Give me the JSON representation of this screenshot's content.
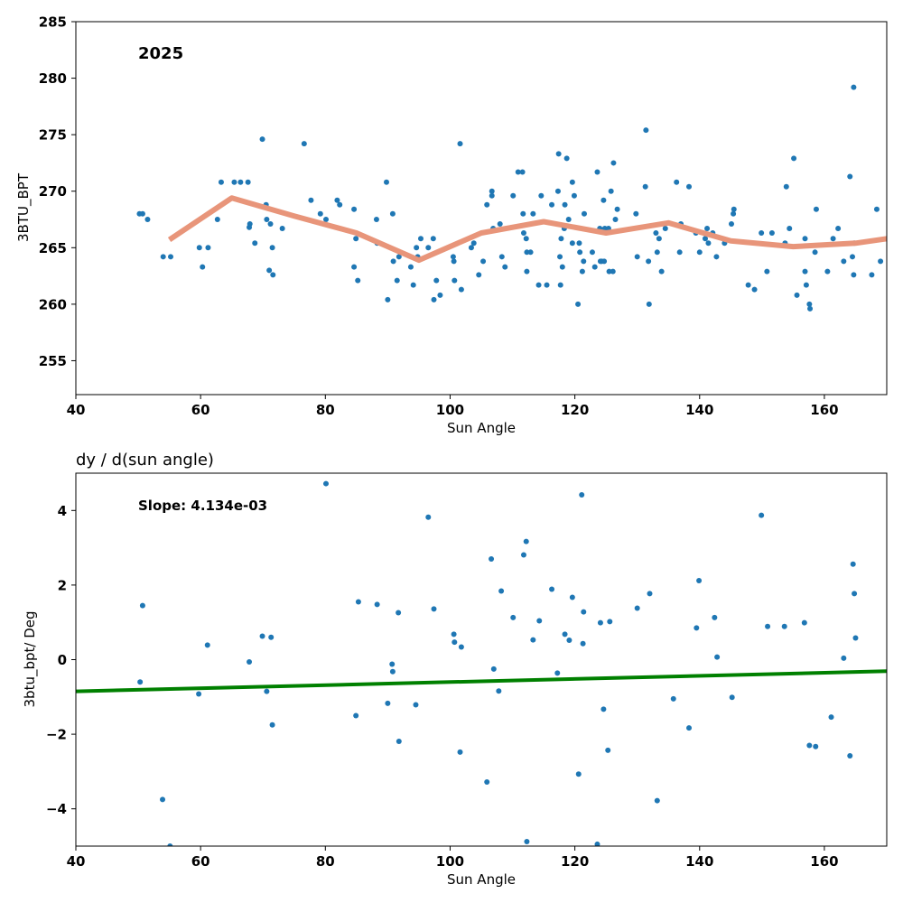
{
  "chart_data": [
    {
      "type": "scatter",
      "title": "",
      "annotation": "2025",
      "xlabel": "Sun Angle",
      "ylabel": "3BTU_BPT",
      "xlim": [
        40,
        170
      ],
      "ylim": [
        252,
        285
      ],
      "xticks": [
        40,
        60,
        80,
        100,
        120,
        140,
        160
      ],
      "yticks": [
        255,
        260,
        265,
        270,
        275,
        280,
        285
      ],
      "grid": false,
      "colors": {
        "points": "#1f77b4",
        "trend": "#e8957a"
      },
      "series": [
        {
          "type": "scatter",
          "points": [
            [
              50.2,
              268.0
            ],
            [
              50.7,
              268.0
            ],
            [
              51.5,
              267.5
            ],
            [
              54.0,
              264.2
            ],
            [
              55.2,
              264.2
            ],
            [
              59.8,
              265.0
            ],
            [
              60.3,
              263.3
            ],
            [
              61.2,
              265.0
            ],
            [
              62.7,
              267.5
            ],
            [
              63.3,
              270.8
            ],
            [
              65.4,
              270.8
            ],
            [
              66.4,
              270.8
            ],
            [
              67.6,
              270.8
            ],
            [
              67.8,
              266.8
            ],
            [
              67.9,
              267.1
            ],
            [
              68.7,
              265.4
            ],
            [
              69.9,
              274.6
            ],
            [
              70.5,
              268.8
            ],
            [
              70.6,
              267.5
            ],
            [
              71.0,
              263.0
            ],
            [
              71.2,
              267.1
            ],
            [
              71.5,
              265.0
            ],
            [
              71.6,
              262.6
            ],
            [
              73.1,
              266.7
            ],
            [
              76.6,
              274.2
            ],
            [
              77.7,
              269.2
            ],
            [
              79.2,
              268.0
            ],
            [
              80.1,
              267.5
            ],
            [
              81.9,
              269.2
            ],
            [
              82.3,
              268.8
            ],
            [
              84.6,
              268.4
            ],
            [
              84.6,
              263.3
            ],
            [
              84.9,
              265.8
            ],
            [
              85.2,
              262.1
            ],
            [
              88.2,
              267.5
            ],
            [
              88.3,
              265.4
            ],
            [
              89.8,
              270.8
            ],
            [
              90.0,
              260.4
            ],
            [
              90.8,
              268.0
            ],
            [
              90.9,
              263.8
            ],
            [
              91.5,
              262.1
            ],
            [
              91.8,
              264.2
            ],
            [
              93.7,
              263.3
            ],
            [
              94.1,
              261.7
            ],
            [
              94.6,
              265.0
            ],
            [
              94.8,
              264.2
            ],
            [
              95.3,
              265.8
            ],
            [
              96.5,
              265.0
            ],
            [
              97.3,
              265.8
            ],
            [
              97.4,
              260.4
            ],
            [
              97.8,
              262.1
            ],
            [
              98.4,
              260.8
            ],
            [
              100.5,
              264.2
            ],
            [
              100.6,
              263.8
            ],
            [
              100.7,
              262.1
            ],
            [
              101.6,
              274.2
            ],
            [
              101.8,
              261.3
            ],
            [
              103.4,
              265.0
            ],
            [
              103.8,
              265.4
            ],
            [
              104.6,
              262.6
            ],
            [
              105.3,
              263.8
            ],
            [
              105.9,
              268.8
            ],
            [
              106.7,
              270.0
            ],
            [
              106.7,
              269.6
            ],
            [
              106.9,
              266.7
            ],
            [
              108.0,
              267.1
            ],
            [
              108.3,
              264.2
            ],
            [
              108.8,
              263.3
            ],
            [
              110.1,
              269.6
            ],
            [
              110.9,
              271.7
            ],
            [
              111.6,
              271.7
            ],
            [
              111.7,
              268.0
            ],
            [
              111.8,
              266.3
            ],
            [
              112.2,
              265.8
            ],
            [
              112.3,
              264.6
            ],
            [
              112.3,
              262.9
            ],
            [
              112.9,
              264.6
            ],
            [
              113.3,
              268.0
            ],
            [
              114.2,
              261.7
            ],
            [
              114.6,
              269.6
            ],
            [
              115.5,
              261.7
            ],
            [
              116.3,
              268.8
            ],
            [
              117.3,
              270.0
            ],
            [
              117.4,
              273.3
            ],
            [
              117.6,
              264.2
            ],
            [
              117.7,
              261.7
            ],
            [
              117.8,
              265.8
            ],
            [
              118.0,
              263.3
            ],
            [
              118.3,
              266.7
            ],
            [
              118.4,
              268.8
            ],
            [
              118.7,
              272.9
            ],
            [
              119.0,
              267.5
            ],
            [
              119.6,
              270.8
            ],
            [
              119.6,
              265.4
            ],
            [
              119.9,
              269.6
            ],
            [
              120.5,
              260.0
            ],
            [
              120.7,
              265.4
            ],
            [
              120.8,
              264.6
            ],
            [
              121.2,
              262.9
            ],
            [
              121.4,
              263.8
            ],
            [
              121.5,
              268.0
            ],
            [
              122.8,
              264.6
            ],
            [
              123.2,
              263.3
            ],
            [
              123.6,
              271.7
            ],
            [
              124.0,
              266.7
            ],
            [
              124.1,
              263.8
            ],
            [
              124.3,
              263.8
            ],
            [
              124.6,
              269.2
            ],
            [
              124.7,
              263.8
            ],
            [
              124.8,
              266.7
            ],
            [
              125.4,
              266.7
            ],
            [
              125.5,
              262.9
            ],
            [
              125.8,
              270.0
            ],
            [
              126.1,
              262.9
            ],
            [
              126.2,
              272.5
            ],
            [
              126.5,
              267.5
            ],
            [
              126.8,
              268.4
            ],
            [
              129.8,
              268.0
            ],
            [
              130.0,
              264.2
            ],
            [
              131.3,
              270.4
            ],
            [
              131.4,
              275.4
            ],
            [
              131.8,
              263.8
            ],
            [
              131.9,
              260.0
            ],
            [
              133.0,
              266.3
            ],
            [
              133.2,
              264.6
            ],
            [
              133.5,
              265.8
            ],
            [
              133.9,
              262.9
            ],
            [
              134.5,
              266.7
            ],
            [
              136.3,
              270.8
            ],
            [
              136.8,
              264.6
            ],
            [
              137.0,
              267.1
            ],
            [
              138.3,
              270.4
            ],
            [
              139.4,
              266.3
            ],
            [
              140.0,
              264.6
            ],
            [
              140.9,
              265.8
            ],
            [
              141.2,
              266.7
            ],
            [
              141.4,
              265.4
            ],
            [
              142.1,
              266.3
            ],
            [
              142.7,
              264.2
            ],
            [
              144.0,
              265.4
            ],
            [
              145.1,
              267.1
            ],
            [
              145.4,
              268.0
            ],
            [
              145.5,
              268.4
            ],
            [
              147.8,
              261.7
            ],
            [
              148.8,
              261.3
            ],
            [
              149.9,
              266.3
            ],
            [
              150.8,
              262.9
            ],
            [
              151.6,
              266.3
            ],
            [
              153.7,
              265.4
            ],
            [
              153.9,
              270.4
            ],
            [
              154.4,
              266.7
            ],
            [
              155.1,
              272.9
            ],
            [
              155.6,
              260.8
            ],
            [
              156.9,
              265.8
            ],
            [
              156.9,
              262.9
            ],
            [
              157.1,
              261.7
            ],
            [
              157.6,
              260.0
            ],
            [
              157.7,
              259.6
            ],
            [
              158.5,
              264.6
            ],
            [
              158.7,
              268.4
            ],
            [
              160.5,
              262.9
            ],
            [
              161.4,
              265.8
            ],
            [
              162.2,
              266.7
            ],
            [
              163.1,
              263.8
            ],
            [
              164.1,
              271.3
            ],
            [
              164.5,
              264.2
            ],
            [
              164.7,
              279.2
            ],
            [
              164.7,
              262.6
            ],
            [
              164.8,
              265.4
            ],
            [
              167.6,
              262.6
            ],
            [
              168.4,
              268.4
            ],
            [
              169.0,
              263.8
            ]
          ]
        },
        {
          "type": "line",
          "points": [
            [
              55,
              265.7
            ],
            [
              65,
              269.4
            ],
            [
              75,
              267.8
            ],
            [
              85,
              266.3
            ],
            [
              95,
              263.9
            ],
            [
              105,
              266.3
            ],
            [
              115,
              267.3
            ],
            [
              125,
              266.3
            ],
            [
              135,
              267.2
            ],
            [
              145,
              265.6
            ],
            [
              155,
              265.1
            ],
            [
              165,
              265.4
            ],
            [
              170,
              265.8
            ]
          ]
        }
      ]
    },
    {
      "type": "scatter",
      "title": "dy / d(sun angle)",
      "annotation": "Slope: 4.134e-03",
      "xlabel": "Sun Angle",
      "ylabel": "3btu_bpt/ Deg",
      "xlim": [
        40,
        170
      ],
      "ylim": [
        -5,
        5
      ],
      "xticks": [
        40,
        60,
        80,
        100,
        120,
        140,
        160
      ],
      "yticks": [
        -4,
        -2,
        0,
        2,
        4
      ],
      "ytick_labels": [
        "−4",
        "−2",
        "0",
        "2",
        "4"
      ],
      "grid": false,
      "colors": {
        "points": "#1f77b4",
        "fit": "#008000"
      },
      "series": [
        {
          "type": "scatter",
          "points": [
            [
              50.3,
              -0.6
            ],
            [
              50.7,
              1.45
            ],
            [
              53.9,
              -3.75
            ],
            [
              55.1,
              -5.0
            ],
            [
              59.7,
              -0.92
            ],
            [
              61.1,
              0.39
            ],
            [
              67.8,
              -0.06
            ],
            [
              69.9,
              0.63
            ],
            [
              70.6,
              -0.85
            ],
            [
              71.3,
              0.6
            ],
            [
              71.5,
              -1.75
            ],
            [
              80.1,
              4.72
            ],
            [
              84.9,
              -1.5
            ],
            [
              85.3,
              1.55
            ],
            [
              88.3,
              1.48
            ],
            [
              90.0,
              -1.17
            ],
            [
              90.7,
              -0.12
            ],
            [
              90.8,
              -0.32
            ],
            [
              91.7,
              1.26
            ],
            [
              91.8,
              -2.19
            ],
            [
              94.5,
              -1.21
            ],
            [
              96.5,
              3.82
            ],
            [
              97.4,
              1.36
            ],
            [
              100.6,
              0.68
            ],
            [
              100.7,
              0.47
            ],
            [
              101.6,
              -2.48
            ],
            [
              101.8,
              0.34
            ],
            [
              105.9,
              -3.28
            ],
            [
              106.6,
              2.7
            ],
            [
              107.0,
              -0.25
            ],
            [
              107.8,
              -0.84
            ],
            [
              108.2,
              1.84
            ],
            [
              110.1,
              1.13
            ],
            [
              111.8,
              2.81
            ],
            [
              112.2,
              3.17
            ],
            [
              112.3,
              -4.88
            ],
            [
              113.3,
              0.53
            ],
            [
              114.3,
              1.04
            ],
            [
              116.3,
              1.89
            ],
            [
              117.2,
              -0.36
            ],
            [
              118.4,
              0.68
            ],
            [
              119.1,
              0.52
            ],
            [
              119.6,
              1.67
            ],
            [
              120.6,
              -3.07
            ],
            [
              121.1,
              4.42
            ],
            [
              121.3,
              0.43
            ],
            [
              121.4,
              1.28
            ],
            [
              123.6,
              -4.95
            ],
            [
              124.1,
              0.99
            ],
            [
              124.6,
              -1.33
            ],
            [
              125.3,
              -2.43
            ],
            [
              125.6,
              1.02
            ],
            [
              130.0,
              1.38
            ],
            [
              132.0,
              1.77
            ],
            [
              133.2,
              -3.78
            ],
            [
              135.8,
              -1.05
            ],
            [
              138.3,
              -1.83
            ],
            [
              139.5,
              0.85
            ],
            [
              139.9,
              2.12
            ],
            [
              142.4,
              1.13
            ],
            [
              142.8,
              0.07
            ],
            [
              145.2,
              -1.01
            ],
            [
              149.9,
              3.87
            ],
            [
              150.9,
              0.89
            ],
            [
              153.6,
              0.89
            ],
            [
              156.8,
              0.99
            ],
            [
              157.6,
              -2.3
            ],
            [
              158.6,
              -2.33
            ],
            [
              161.1,
              -1.54
            ],
            [
              163.1,
              0.04
            ],
            [
              164.1,
              -2.58
            ],
            [
              164.6,
              2.56
            ],
            [
              164.8,
              1.77
            ],
            [
              165.0,
              0.58
            ]
          ]
        },
        {
          "type": "line",
          "points": [
            [
              40,
              -0.85
            ],
            [
              170,
              -0.31
            ]
          ]
        }
      ]
    }
  ]
}
